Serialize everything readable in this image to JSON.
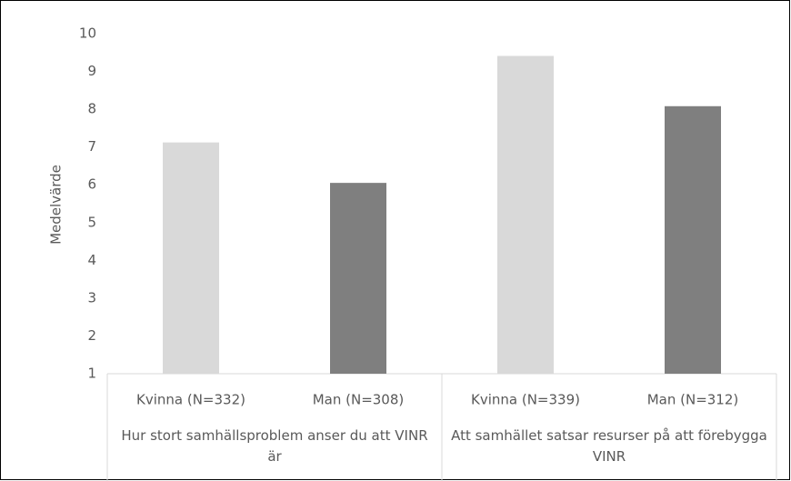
{
  "chart_data": {
    "type": "bar",
    "y_label": "Medelvärde",
    "categories": [
      "Kvinna (N=332)",
      "Man (N=308)",
      "Kvinna (N=339)",
      "Man (N=312)"
    ],
    "values": [
      7.12,
      6.05,
      9.41,
      8.08
    ],
    "colors": [
      "#d9d9d9",
      "#7f7f7f",
      "#d9d9d9",
      "#7f7f7f"
    ],
    "groups": [
      {
        "label": "Hur stort samhällsproblem anser du att VINR är",
        "categories": [
          0,
          1
        ]
      },
      {
        "label": "Att samhället satsar resurser på att förebygga VINR",
        "categories": [
          2,
          3
        ]
      }
    ],
    "ylim": [
      1,
      10
    ],
    "yticks": [
      1,
      2,
      3,
      4,
      5,
      6,
      7,
      8,
      9,
      10
    ],
    "grid": false
  }
}
